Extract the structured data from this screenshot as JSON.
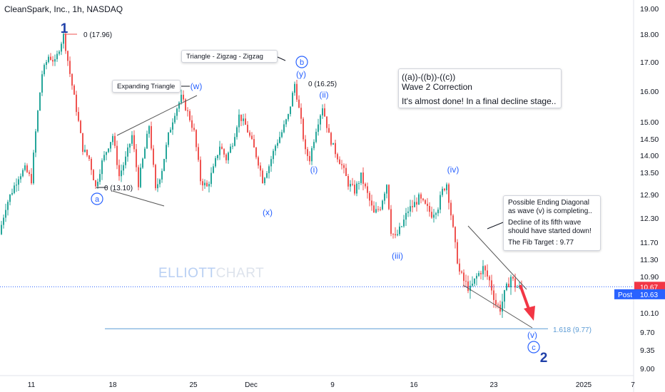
{
  "header": {
    "title": "CleanSpark, Inc., 1h, NASDAQ"
  },
  "colors": {
    "up": "#26a69a",
    "down": "#ef5350",
    "wave": "#2962ff",
    "line": "#1e3fa8"
  },
  "watermark": {
    "part1": "ELLIOTT",
    "part2": "CHART"
  },
  "price_scale": {
    "ticks": [
      "19.00",
      "18.00",
      "17.00",
      "16.00",
      "15.00",
      "14.50",
      "14.00",
      "13.50",
      "12.90",
      "12.30",
      "11.70",
      "11.30",
      "10.90",
      "10.50",
      "10.10",
      "9.70",
      "9.35",
      "9.00"
    ],
    "current_price": "10.67",
    "post_label": "Post",
    "post_price": "10.63"
  },
  "time_axis": {
    "labels": [
      "11",
      "18",
      "25",
      "Dec",
      "9",
      "16",
      "23",
      "2025",
      "7"
    ]
  },
  "notes": {
    "big": {
      "line1": "((a))-((b))-((c))",
      "line2": "Wave 2 Correction",
      "line3": "It's almost done! In a final decline stage.."
    },
    "diagonal": {
      "line1": "Possible Ending Diagonal",
      "line2": "as wave (v) is completing..",
      "line3": "Decline of its fifth wave",
      "line4": "should have started down!",
      "line5": "The Fib Target :    9.77"
    },
    "expanding": "Expanding Triangle",
    "triangle": "Triangle -  Zigzag - Zigzag"
  },
  "labels": {
    "wave1": "1",
    "wave1_level": "0 (17.96)",
    "wave_a": "a",
    "wave_a_level": "0 (13.10)",
    "wave_w": "(w)",
    "wave_x": "(x)",
    "wave_y": "(y)",
    "wave_b": "b",
    "wave_b_level": "0 (16.25)",
    "wave_i": "(i)",
    "wave_ii": "(ii)",
    "wave_iii": "(iii)",
    "wave_iv": "(iv)",
    "wave_v": "(v)",
    "wave_c": "c",
    "wave2": "2",
    "fib": "1.618 (9.77)"
  },
  "chart_data": {
    "type": "candlestick",
    "path": [
      [
        0,
        11.9
      ],
      [
        3,
        12.6
      ],
      [
        6,
        13.0
      ],
      [
        9,
        13.4
      ],
      [
        12,
        13.6
      ],
      [
        15,
        13.3
      ],
      [
        17,
        14.7
      ],
      [
        20,
        16.6
      ],
      [
        23,
        17.2
      ],
      [
        26,
        17.0
      ],
      [
        30,
        17.96
      ],
      [
        33,
        16.6
      ],
      [
        36,
        15.4
      ],
      [
        39,
        14.2
      ],
      [
        42,
        13.9
      ],
      [
        45,
        13.1
      ],
      [
        48,
        13.8
      ],
      [
        51,
        14.3
      ],
      [
        53,
        14.6
      ],
      [
        56,
        13.4
      ],
      [
        59,
        13.9
      ],
      [
        62,
        14.6
      ],
      [
        65,
        13.2
      ],
      [
        68,
        14.2
      ],
      [
        70,
        14.9
      ],
      [
        73,
        13.0
      ],
      [
        76,
        13.6
      ],
      [
        79,
        14.6
      ],
      [
        82,
        15.3
      ],
      [
        85,
        15.8
      ],
      [
        88,
        15.3
      ],
      [
        91,
        14.7
      ],
      [
        94,
        13.3
      ],
      [
        97,
        13.1
      ],
      [
        100,
        13.6
      ],
      [
        103,
        14.3
      ],
      [
        106,
        13.9
      ],
      [
        109,
        14.4
      ],
      [
        112,
        15.2
      ],
      [
        115,
        14.9
      ],
      [
        118,
        14.4
      ],
      [
        121,
        13.8
      ],
      [
        123,
        13.3
      ],
      [
        126,
        13.7
      ],
      [
        129,
        14.3
      ],
      [
        132,
        14.7
      ],
      [
        135,
        15.2
      ],
      [
        138,
        16.25
      ],
      [
        141,
        15.0
      ],
      [
        143,
        14.1
      ],
      [
        145,
        13.9
      ],
      [
        148,
        14.8
      ],
      [
        151,
        15.5
      ],
      [
        154,
        14.6
      ],
      [
        157,
        14.1
      ],
      [
        160,
        13.7
      ],
      [
        163,
        13.2
      ],
      [
        166,
        13.0
      ],
      [
        169,
        13.4
      ],
      [
        172,
        12.9
      ],
      [
        175,
        12.4
      ],
      [
        178,
        12.6
      ],
      [
        181,
        13.2
      ],
      [
        183,
        12.0
      ],
      [
        185,
        11.8
      ],
      [
        188,
        12.1
      ],
      [
        191,
        12.5
      ],
      [
        193,
        12.6
      ],
      [
        196,
        12.8
      ],
      [
        199,
        12.6
      ],
      [
        202,
        12.4
      ],
      [
        205,
        12.6
      ],
      [
        207,
        13.0
      ],
      [
        209,
        13.2
      ],
      [
        211,
        12.4
      ],
      [
        213,
        11.6
      ],
      [
        215,
        11.0
      ],
      [
        217,
        10.8
      ],
      [
        220,
        10.6
      ],
      [
        223,
        10.9
      ],
      [
        226,
        11.1
      ],
      [
        229,
        10.8
      ],
      [
        232,
        10.3
      ],
      [
        234,
        10.2
      ],
      [
        236,
        10.5
      ],
      [
        239,
        10.9
      ],
      [
        241,
        10.7
      ],
      [
        243,
        10.63
      ]
    ],
    "x_labels": [
      "11",
      "18",
      "25",
      "Dec",
      "9",
      "16",
      "23",
      "2025",
      "7"
    ],
    "y_ticks": [
      19.0,
      18.0,
      17.0,
      16.0,
      15.0,
      14.5,
      14.0,
      13.5,
      12.9,
      12.3,
      11.7,
      11.3,
      10.9,
      10.5,
      10.1,
      9.7,
      9.35,
      9.0
    ],
    "fib_target": 9.77,
    "current_price": 10.67,
    "post_price": 10.63
  }
}
